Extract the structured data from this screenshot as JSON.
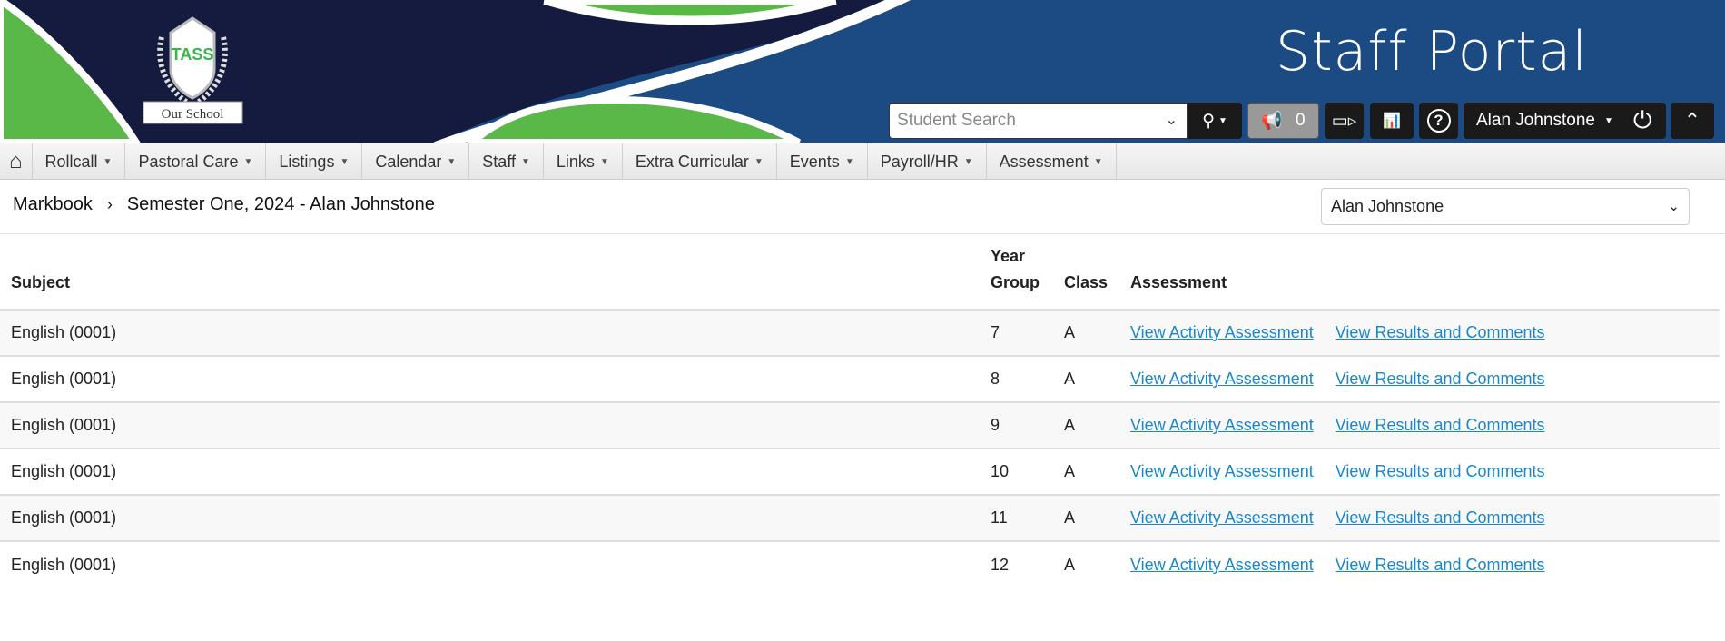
{
  "header": {
    "title": "Staff Portal",
    "logo_text": "TASS",
    "logo_banner": "Our School",
    "search_placeholder": "Student Search",
    "notification_count": "0",
    "user_name": "Alan Johnstone",
    "icons": [
      "search-icon",
      "megaphone-icon",
      "video-icon",
      "chart-icon",
      "help-icon",
      "power-icon",
      "chevron-up-icon"
    ]
  },
  "colors": {
    "navy": "#141b3f",
    "blue": "#1c4a82",
    "green": "#59b847",
    "link": "#1a87c9"
  },
  "nav": {
    "items": [
      "Rollcall",
      "Pastoral Care",
      "Listings",
      "Calendar",
      "Staff",
      "Links",
      "Extra Curricular",
      "Events",
      "Payroll/HR",
      "Assessment"
    ]
  },
  "breadcrumb": {
    "root": "Markbook",
    "current": "Semester One, 2024 - Alan Johnstone"
  },
  "staff_select": {
    "value": "Alan Johnstone"
  },
  "table": {
    "headers": {
      "subject": "Subject",
      "year_top": "Year",
      "year_bottom": "Group",
      "class": "Class",
      "assessment": "Assessment"
    },
    "link1": "View Activity Assessment",
    "link2": "View Results and Comments",
    "rows": [
      {
        "subject": "English (0001)",
        "year": "7",
        "class": "A"
      },
      {
        "subject": "English (0001)",
        "year": "8",
        "class": "A"
      },
      {
        "subject": "English (0001)",
        "year": "9",
        "class": "A"
      },
      {
        "subject": "English (0001)",
        "year": "10",
        "class": "A"
      },
      {
        "subject": "English (0001)",
        "year": "11",
        "class": "A"
      },
      {
        "subject": "English (0001)",
        "year": "12",
        "class": "A"
      }
    ]
  }
}
